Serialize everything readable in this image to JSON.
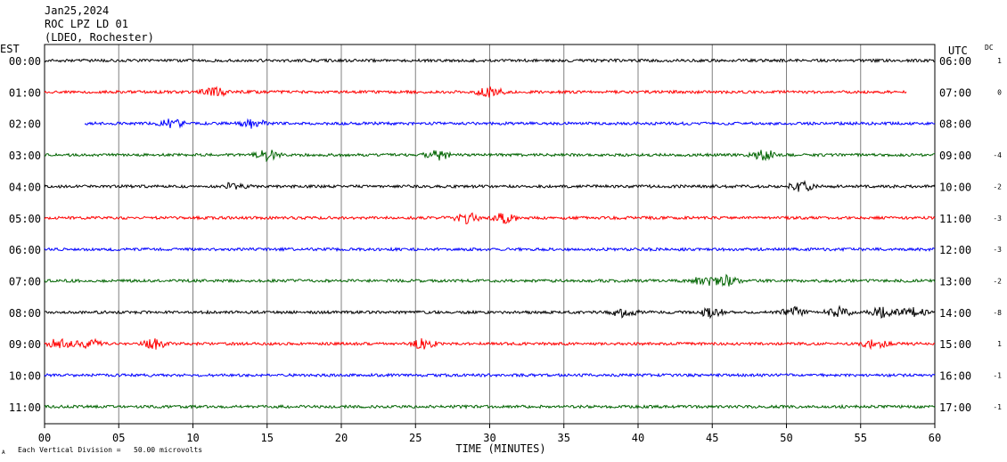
{
  "header": {
    "date": "Jan25,2024",
    "station": "ROC LPZ LD 01",
    "network": "(LDEO, Rochester)"
  },
  "left_tz": "EST",
  "right_tz": "UTC",
  "dc_label": "DC",
  "footer": {
    "scale_note": "Each Vertical Division =   50.00 microvolts",
    "corner_mark": "A"
  },
  "colors": {
    "trace_cycle": [
      "#000000",
      "#ff0000",
      "#0000ff",
      "#006400"
    ],
    "grid": "#808080",
    "axis": "#000000",
    "background": "#ffffff"
  },
  "chart_data": {
    "type": "line",
    "description_kind": "helicorder seismogram, 12 hourly traces",
    "xlabel": "TIME (MINUTES)",
    "x_ticks": [
      "00",
      "05",
      "10",
      "15",
      "20",
      "25",
      "30",
      "35",
      "40",
      "45",
      "50",
      "55",
      "60"
    ],
    "xlim": [
      0,
      60
    ],
    "grid": true,
    "rows": [
      {
        "est": "00:00",
        "utc": "06:00",
        "dc": "1",
        "start_min": 0.0,
        "end_min": 60.0,
        "bursts": []
      },
      {
        "est": "01:00",
        "utc": "07:00",
        "dc": "0",
        "start_min": 0.0,
        "end_min": 58.1,
        "bursts": [
          11.5,
          30.0
        ]
      },
      {
        "est": "02:00",
        "utc": "08:00",
        "dc": "",
        "start_min": 2.7,
        "end_min": 60.0,
        "bursts": [
          8.5,
          14.0
        ]
      },
      {
        "est": "03:00",
        "utc": "09:00",
        "dc": "-4",
        "start_min": 0.0,
        "end_min": 60.0,
        "bursts": [
          15.0,
          26.5,
          48.5
        ]
      },
      {
        "est": "04:00",
        "utc": "10:00",
        "dc": "-2",
        "start_min": 0.0,
        "end_min": 60.0,
        "bursts": [
          13.0,
          51.0
        ]
      },
      {
        "est": "05:00",
        "utc": "11:00",
        "dc": "-3",
        "start_min": 0.0,
        "end_min": 60.0,
        "bursts": [
          28.5,
          31.0
        ]
      },
      {
        "est": "06:00",
        "utc": "12:00",
        "dc": "-3",
        "start_min": 0.0,
        "end_min": 60.0,
        "bursts": []
      },
      {
        "est": "07:00",
        "utc": "13:00",
        "dc": "-2",
        "start_min": 0.0,
        "end_min": 60.0,
        "bursts": [
          44.5,
          46.0
        ]
      },
      {
        "est": "08:00",
        "utc": "14:00",
        "dc": "-8",
        "start_min": 0.0,
        "end_min": 60.0,
        "bursts": [
          39.0,
          45.0,
          50.5,
          53.5,
          56.5,
          58.5
        ]
      },
      {
        "est": "09:00",
        "utc": "15:00",
        "dc": "1",
        "start_min": 0.0,
        "end_min": 60.0,
        "bursts": [
          1.0,
          3.0,
          7.5,
          25.5,
          56.0
        ]
      },
      {
        "est": "10:00",
        "utc": "16:00",
        "dc": "-1",
        "start_min": 0.0,
        "end_min": 60.0,
        "bursts": []
      },
      {
        "est": "11:00",
        "utc": "17:00",
        "dc": "-1",
        "start_min": 0.0,
        "end_min": 60.0,
        "bursts": []
      }
    ]
  }
}
